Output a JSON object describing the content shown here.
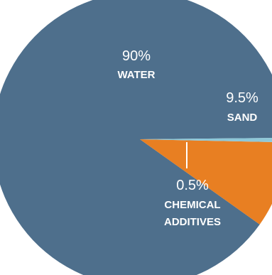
{
  "chart_data": {
    "type": "pie",
    "slices": [
      {
        "label": "WATER",
        "value_label": "90%",
        "value": 90,
        "color": "#4e6f8c",
        "label_color": "#ffffff"
      },
      {
        "label": "SAND",
        "value_label": "9.5%",
        "value": 9.5,
        "color": "#e87f22",
        "label_color": "#ffffff"
      },
      {
        "label": "CHEMICAL ADDITIVES",
        "label_lines": [
          "CHEMICAL",
          "ADDITIVES"
        ],
        "value_label": "0.5%",
        "value": 0.5,
        "color": "#8ec8d8",
        "label_color": "#ffffff"
      }
    ],
    "title": "",
    "legend": "none"
  }
}
